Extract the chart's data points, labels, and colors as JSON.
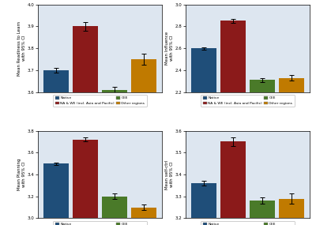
{
  "subplots": [
    {
      "ylabel": "Mean Readiness to Learn\nwith 95% CI",
      "ylim": [
        3.6,
        4.0
      ],
      "yticks": [
        3.6,
        3.7,
        3.8,
        3.9,
        4.0
      ],
      "values": [
        3.7,
        3.9,
        3.61,
        3.75
      ],
      "errors": [
        0.01,
        0.02,
        0.015,
        0.025
      ]
    },
    {
      "ylabel": "Mean Influence\nwith 95% CI",
      "ylim": [
        2.2,
        3.0
      ],
      "yticks": [
        2.2,
        2.4,
        2.6,
        2.8,
        3.0
      ],
      "values": [
        2.6,
        2.85,
        2.31,
        2.33
      ],
      "errors": [
        0.01,
        0.015,
        0.02,
        0.025
      ]
    },
    {
      "ylabel": "Mean Planning\nwith 95% CI",
      "ylim": [
        3.0,
        3.8
      ],
      "yticks": [
        3.0,
        3.2,
        3.4,
        3.6,
        3.8
      ],
      "values": [
        3.5,
        3.72,
        3.2,
        3.1
      ],
      "errors": [
        0.01,
        0.02,
        0.025,
        0.025
      ]
    },
    {
      "ylabel": "Mean self-ctrl\nwith 95% CI",
      "ylim": [
        3.2,
        3.6
      ],
      "yticks": [
        3.2,
        3.3,
        3.4,
        3.5,
        3.6
      ],
      "values": [
        3.36,
        3.55,
        3.28,
        3.29
      ],
      "errors": [
        0.01,
        0.02,
        0.015,
        0.025
      ]
    }
  ],
  "legend_labels": [
    "Native",
    "NA & WE (incl. Asia and Pacific)",
    "CEE",
    "Other regions"
  ],
  "colors": [
    "#1f4e79",
    "#8b1a1a",
    "#4a7a29",
    "#c07a00"
  ],
  "background_color": "#dde6f0",
  "bar_width": 0.85,
  "figsize": [
    4.0,
    2.85
  ],
  "dpi": 100
}
